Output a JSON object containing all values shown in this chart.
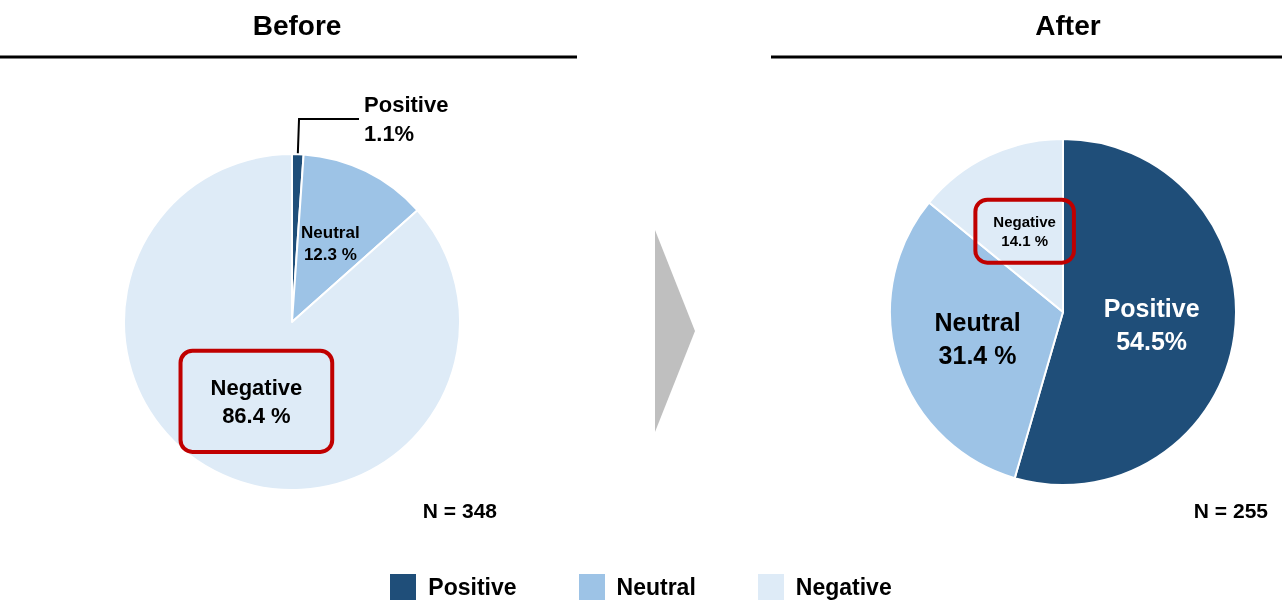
{
  "chart_data": [
    {
      "type": "pie",
      "title": "Before",
      "categories": [
        "Positive",
        "Neutral",
        "Negative"
      ],
      "values": [
        1.1,
        12.3,
        86.4
      ],
      "value_labels": [
        "1.1%",
        "12.3 %",
        "86.4 %"
      ],
      "colors": [
        "#1f4e79",
        "#9dc3e6",
        "#deebf7"
      ],
      "annotations": [
        "N = 348"
      ],
      "legend": "bottom"
    },
    {
      "type": "pie",
      "title": "After",
      "categories": [
        "Positive",
        "Neutral",
        "Negative"
      ],
      "values": [
        54.5,
        31.4,
        14.1
      ],
      "value_labels": [
        "54.5%",
        "31.4 %",
        "14.1 %"
      ],
      "colors": [
        "#1f4e79",
        "#9dc3e6",
        "#deebf7"
      ],
      "annotations": [
        "N = 255"
      ]
    }
  ]
}
